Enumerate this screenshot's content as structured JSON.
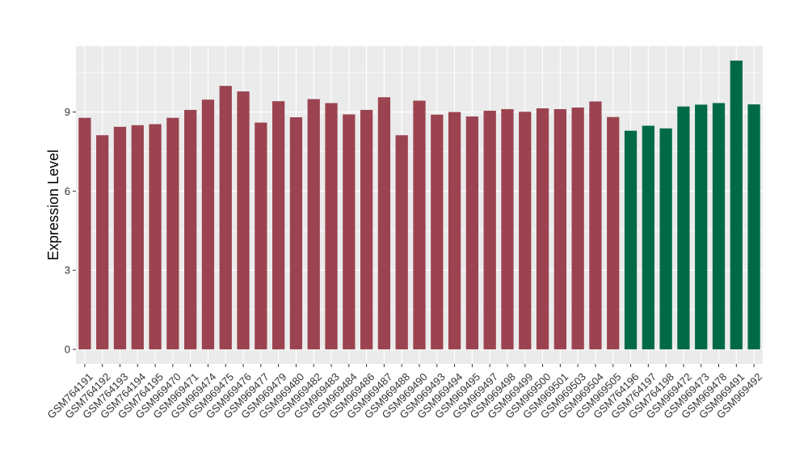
{
  "chart_data": {
    "type": "bar",
    "title": "",
    "xlabel": "",
    "ylabel": "Expression Level",
    "ylim": [
      -0.55,
      11.5
    ],
    "yticks": [
      0,
      3,
      6,
      9
    ],
    "grid": true,
    "legend": "none",
    "categories": [
      "GSM764191",
      "GSM764192",
      "GSM764193",
      "GSM764194",
      "GSM764195",
      "GSM969470",
      "GSM969471",
      "GSM969474",
      "GSM969475",
      "GSM969476",
      "GSM969477",
      "GSM969479",
      "GSM969480",
      "GSM969482",
      "GSM969483",
      "GSM969484",
      "GSM969486",
      "GSM969487",
      "GSM969488",
      "GSM969490",
      "GSM969493",
      "GSM969494",
      "GSM969495",
      "GSM969497",
      "GSM969498",
      "GSM969499",
      "GSM969500",
      "GSM969501",
      "GSM969503",
      "GSM969504",
      "GSM969505",
      "GSM764196",
      "GSM764197",
      "GSM764198",
      "GSM969472",
      "GSM969473",
      "GSM969478",
      "GSM969491",
      "GSM969492"
    ],
    "values": [
      8.78,
      8.12,
      8.44,
      8.5,
      8.54,
      8.78,
      9.08,
      9.47,
      9.99,
      9.78,
      8.6,
      9.41,
      8.8,
      9.49,
      9.34,
      8.91,
      9.08,
      9.56,
      8.12,
      9.43,
      8.9,
      9.0,
      8.83,
      9.05,
      9.11,
      9.01,
      9.14,
      9.11,
      9.17,
      9.4,
      8.81,
      8.29,
      8.48,
      8.38,
      9.21,
      9.28,
      9.34,
      10.95,
      9.29
    ],
    "groups": [
      "a",
      "a",
      "a",
      "a",
      "a",
      "a",
      "a",
      "a",
      "a",
      "a",
      "a",
      "a",
      "a",
      "a",
      "a",
      "a",
      "a",
      "a",
      "a",
      "a",
      "a",
      "a",
      "a",
      "a",
      "a",
      "a",
      "a",
      "a",
      "a",
      "a",
      "a",
      "b",
      "b",
      "b",
      "b",
      "b",
      "b",
      "b",
      "b"
    ],
    "group_colors": {
      "a": "#9B4350",
      "b": "#006A47"
    },
    "panel_background": "#EBEBEB",
    "grid_color": "#FFFFFF"
  }
}
